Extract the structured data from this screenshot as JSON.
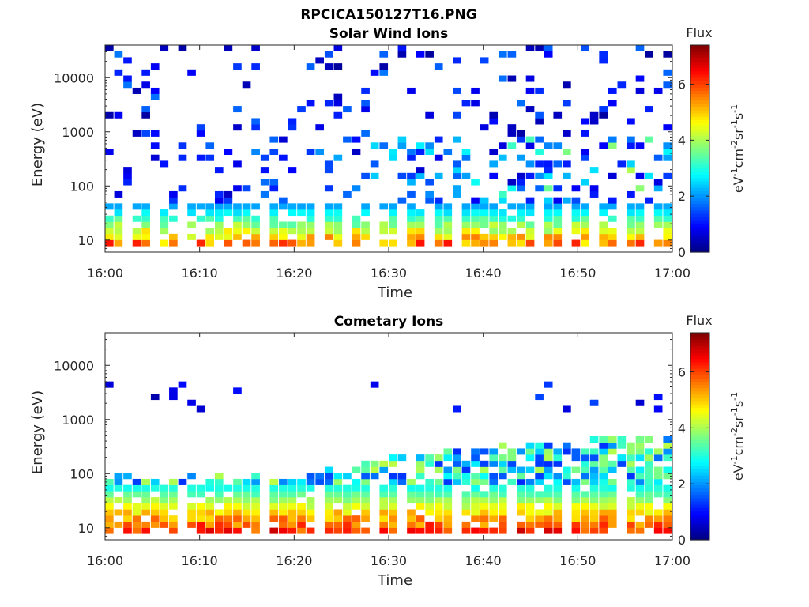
{
  "figure_title": "RPCICA150127T16.PNG",
  "chart_data": [
    {
      "type": "heatmap",
      "title": "Solar Wind Ions",
      "xlabel": "Time",
      "ylabel": "Energy (eV)",
      "x_ticks": [
        "16:00",
        "16:10",
        "16:20",
        "16:30",
        "16:40",
        "16:50",
        "17:00"
      ],
      "xlim": [
        "16:00",
        "17:00"
      ],
      "y_scale": "log",
      "y_ticks": [
        "10",
        "100",
        "1000",
        "10000"
      ],
      "ylim": [
        6,
        40000
      ],
      "colorbar": {
        "title": "Flux",
        "unit_base": [
          "eV",
          "cm",
          "sr",
          "s"
        ],
        "unit_exp": [
          "-1",
          "-2",
          "-1",
          "-1"
        ],
        "range": [
          0,
          7.4
        ],
        "ticks": [
          "0",
          "2",
          "4",
          "6"
        ],
        "colormap": "jet"
      },
      "pattern": {
        "low_band_energy_range_eV": [
          7,
          45
        ],
        "low_band_peak_flux": 6.5,
        "sparse_counts_flux_range": [
          0.2,
          2
        ],
        "sparse_counts_energy_range_eV": [
          100,
          40000
        ],
        "time_bins": 62,
        "energy_bins": 34
      }
    },
    {
      "type": "heatmap",
      "title": "Cometary Ions",
      "xlabel": "Time",
      "ylabel": "Energy (eV)",
      "x_ticks": [
        "16:00",
        "16:10",
        "16:20",
        "16:30",
        "16:40",
        "16:50",
        "17:00"
      ],
      "xlim": [
        "16:00",
        "17:00"
      ],
      "y_scale": "log",
      "y_ticks": [
        "10",
        "100",
        "1000",
        "10000"
      ],
      "ylim": [
        6,
        40000
      ],
      "colorbar": {
        "title": "Flux",
        "unit_base": [
          "eV",
          "cm",
          "sr",
          "s"
        ],
        "unit_exp": [
          "-1",
          "-2",
          "-1",
          "-1"
        ],
        "range": [
          0,
          7.4
        ],
        "ticks": [
          "0",
          "2",
          "4",
          "6"
        ],
        "colormap": "jet"
      },
      "pattern": {
        "low_band_energy_range_eV": [
          7,
          60
        ],
        "low_band_peak_flux": 7,
        "upper_extent_after_1630_eV": 500,
        "time_bins": 62,
        "energy_bins": 34
      }
    }
  ]
}
